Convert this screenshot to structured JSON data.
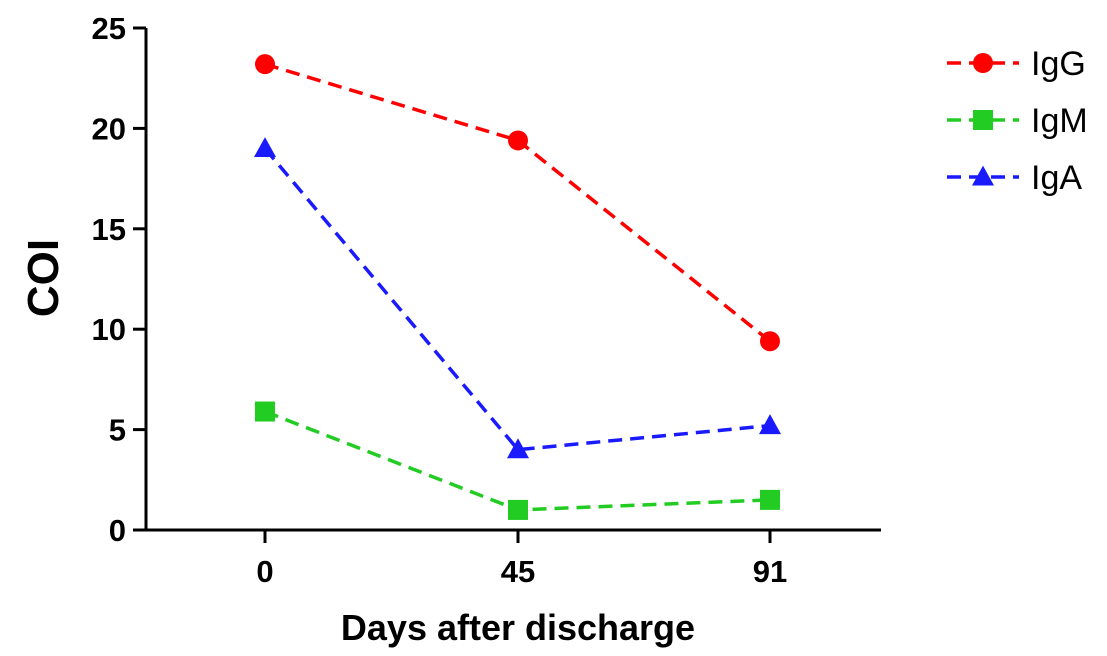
{
  "chart_data": {
    "type": "line",
    "x": [
      0,
      45,
      91
    ],
    "x_tick_labels": [
      "0",
      "45",
      "91"
    ],
    "xlabel": "Days after discharge",
    "ylabel": "COI",
    "ylim": [
      0,
      25
    ],
    "y_ticks": [
      0,
      5,
      10,
      15,
      20,
      25
    ],
    "grid": false,
    "legend_position": "top-right",
    "series": [
      {
        "name": "IgG",
        "values": [
          23.2,
          19.4,
          9.4
        ],
        "color": "#ff0000",
        "marker": "circle",
        "line_style": "dashed"
      },
      {
        "name": "IgM",
        "values": [
          5.9,
          1.0,
          1.5
        ],
        "color": "#22cc22",
        "marker": "square",
        "line_style": "dashed"
      },
      {
        "name": "IgA",
        "values": [
          19.0,
          4.0,
          5.2
        ],
        "color": "#1a1aff",
        "marker": "triangle",
        "line_style": "dashed"
      }
    ]
  }
}
